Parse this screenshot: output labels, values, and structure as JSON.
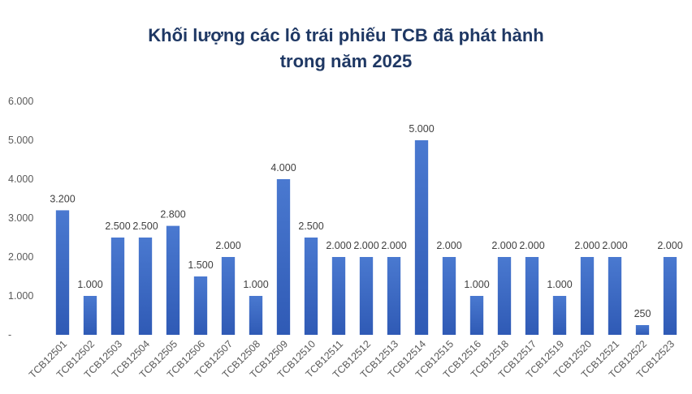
{
  "chart_data": {
    "type": "bar",
    "title": [
      "Khối lượng các lô trái phiếu TCB đã phát hành",
      "trong năm 2025"
    ],
    "xlabel": "",
    "ylabel": "",
    "ylim": [
      0,
      6000
    ],
    "yticks": [
      0,
      1000,
      2000,
      3000,
      4000,
      5000,
      6000
    ],
    "ytick_labels": [
      "-",
      "1.000",
      "2.000",
      "3.000",
      "4.000",
      "5.000",
      "6.000"
    ],
    "grid": false,
    "legend": "none",
    "bar_color_top": "#4a79d0",
    "bar_color_bottom": "#2f5ab5",
    "categories": [
      "TCB12501",
      "TCB12502",
      "TCB12503",
      "TCB12504",
      "TCB12505",
      "TCB12506",
      "TCB12507",
      "TCB12508",
      "TCB12509",
      "TCB12510",
      "TCB12511",
      "TCB12512",
      "TCB12513",
      "TCB12514",
      "TCB12515",
      "TCB12516",
      "TCB12518",
      "TCB12517",
      "TCB12519",
      "TCB12520",
      "TCB12521",
      "TCB12522",
      "TCB12523"
    ],
    "values": [
      3200,
      1000,
      2500,
      2500,
      2800,
      1500,
      2000,
      1000,
      4000,
      2500,
      2000,
      2000,
      2000,
      5000,
      2000,
      1000,
      2000,
      2000,
      1000,
      2000,
      2000,
      250,
      2000
    ],
    "value_labels": [
      "3.200",
      "1.000",
      "2.500",
      "2.500",
      "2.800",
      "1.500",
      "2.000",
      "1.000",
      "4.000",
      "2.500",
      "2.000",
      "2.000",
      "2.000",
      "5.000",
      "2.000",
      "1.000",
      "2.000",
      "2.000",
      "1.000",
      "2.000",
      "2.000",
      "250",
      "2.000"
    ]
  }
}
